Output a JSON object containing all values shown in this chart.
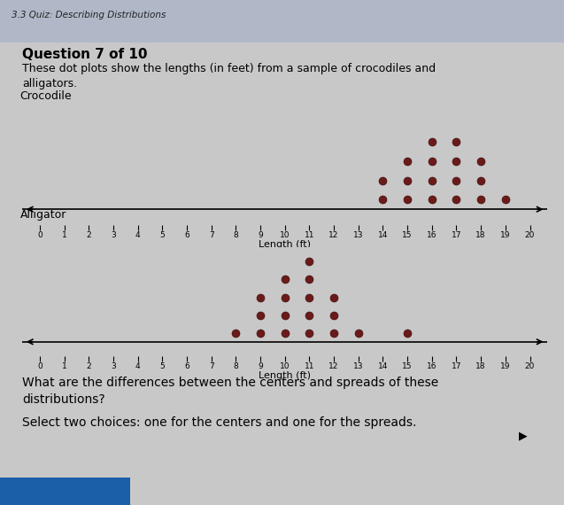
{
  "crocodile_dots": {
    "14": 2,
    "15": 3,
    "16": 4,
    "17": 4,
    "18": 3,
    "19": 1
  },
  "alligator_dots": {
    "8": 1,
    "9": 3,
    "10": 4,
    "11": 5,
    "12": 3,
    "13": 1,
    "15": 1
  },
  "x_min": 0,
  "x_max": 20,
  "dot_color": "#6b1a1a",
  "dot_size": 6.5,
  "bg_color": "#c8c8c8",
  "header_bg": "#b0b8c8",
  "title_text": "3.3 Quiz: Describing Distributions",
  "question_text": "Question 7 of 10",
  "body_text": "These dot plots show the lengths (in feet) from a sample of crocodiles and\nalligators.",
  "label_crocodile": "Crocodile",
  "label_alligator": "Alligator",
  "xlabel": "Length (ft)",
  "footer1": "What are the differences between the centers and spreads of these\ndistributions?",
  "footer2": "Select two choices: one for the centers and one for the spreads.",
  "btn_color": "#1a5fa8"
}
